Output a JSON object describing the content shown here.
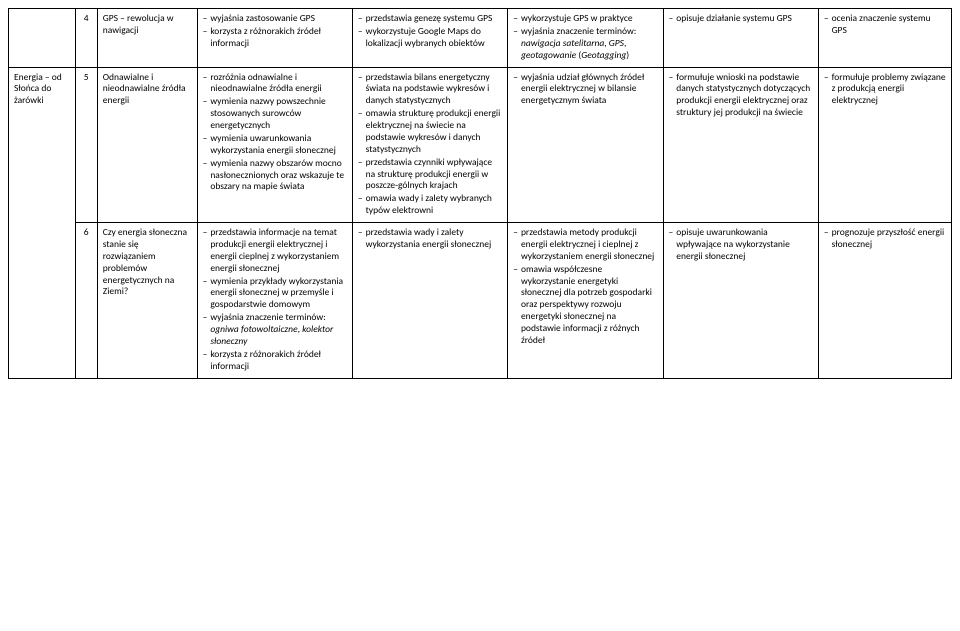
{
  "rows": [
    {
      "section": "",
      "num": "4",
      "topic": "GPS – rewolucja w nawigacji",
      "c3": [
        "wyjaśnia zastosowanie GPS",
        "korzysta z różnorakich źródeł informacji"
      ],
      "c4": [
        "przedstawia genezę systemu GPS",
        "wykorzystuje Google Maps do lokalizacji wybranych obiektów"
      ],
      "c5": [
        "wykorzystuje GPS w praktyce",
        "wyjaśnia znaczenie terminów: <em>nawigacja satelitarna</em>, <em>GPS</em>, <em>geotagowanie</em> (<em>Geotagging</em>)"
      ],
      "c6": [
        "opisuje działanie systemu GPS"
      ],
      "c7": [
        "ocenia znaczenie systemu GPS"
      ]
    },
    {
      "section": "Energia – od Słońca do żarówki",
      "num": "5",
      "topic": "Odnawialne i nieodnawialne źródła energii",
      "c3": [
        "rozróżnia odnawialne i nieodnawialne źródła energii",
        "wymienia nazwy powszechnie stosowanych surowców energetycznych",
        "wymienia uwarunkowania wykorzystania energii słonecznej",
        "wymienia nazwy obszarów mocno nasłonecznionych oraz wskazuje te obszary na mapie świata"
      ],
      "c4": [
        "przedstawia bilans energetyczny świata na podstawie wykresów i danych statystycznych",
        "omawia strukturę produkcji energii elektrycznej na świecie na podstawie wykresów i danych statystycznych",
        "przedstawia czynniki wpływające na strukturę produkcji energii w poszcze-gólnych krajach",
        "omawia wady i zalety wybranych typów elektrowni"
      ],
      "c5": [
        "wyjaśnia udział głównych źródeł energii elektrycznej w bilansie energetycznym świata"
      ],
      "c6": [
        "formułuje wnioski na podstawie danych statystycznych dotyczących produkcji energii elektrycznej oraz struktury jej produkcji na świecie"
      ],
      "c7": [
        "formułuje problemy związane z produkcją energii elektrycznej"
      ]
    },
    {
      "section": "",
      "num": "6",
      "topic": "Czy energia słoneczna stanie się rozwiązaniem problemów energetycznych na Ziemi?",
      "c3": [
        "przedstawia informacje na temat produkcji energii elektrycznej i energii cieplnej z wykorzystaniem energii słonecznej",
        "wymienia przykłady wykorzystania energii słonecznej w przemyśle i gospodarstwie domowym",
        "wyjaśnia znaczenie terminów: <em>ogniwa fotowoltaiczne</em>, <em>kolektor słoneczny</em>",
        "korzysta z różnorakich źródeł informacji"
      ],
      "c4": [
        "przedstawia wady i zalety wykorzystania energii słonecznej"
      ],
      "c5": [
        "przedstawia metody produkcji energii elektrycznej i cieplnej z wykorzystaniem energii słonecznej",
        "omawia współczesne wykorzystanie energetyki słonecznej dla potrzeb gospodarki oraz perspektywy rozwoju energetyki słonecznej na podstawie informacji z różnych źródeł"
      ],
      "c6": [
        "opisuje uwarunkowania wpływające na wykorzystanie energii słonecznej"
      ],
      "c7": [
        "prognozuje przyszłość energii słonecznej"
      ]
    }
  ]
}
